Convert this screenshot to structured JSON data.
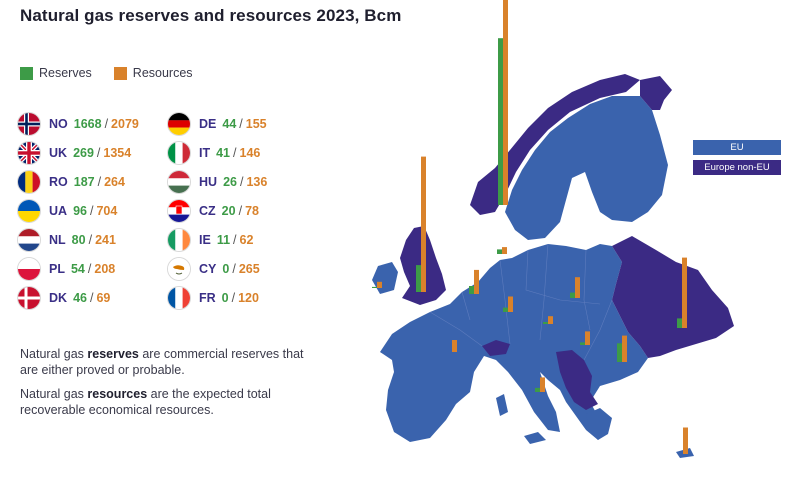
{
  "title": "Natural gas reserves and resources 2023, Bcm",
  "legend": {
    "reserves": "Reserves",
    "resources": "Resources"
  },
  "colors": {
    "reserves": "#3d9b47",
    "resources": "#d9822b",
    "eu": "#3a63ad",
    "non_eu": "#3b2a84"
  },
  "map_legend": {
    "eu": "EU",
    "non_eu": "Europe non-EU"
  },
  "countries": [
    {
      "code": "NO",
      "reserves": "1668",
      "resources": "2079",
      "flag": "norway-flag"
    },
    {
      "code": "UK",
      "reserves": "269",
      "resources": "1354",
      "flag": "uk-flag"
    },
    {
      "code": "RO",
      "reserves": "187",
      "resources": "264",
      "flag": "romania-flag"
    },
    {
      "code": "UA",
      "reserves": "96",
      "resources": "704",
      "flag": "ukraine-flag"
    },
    {
      "code": "NL",
      "reserves": "80",
      "resources": "241",
      "flag": "netherlands-flag"
    },
    {
      "code": "PL",
      "reserves": "54",
      "resources": "208",
      "flag": "poland-flag"
    },
    {
      "code": "DK",
      "reserves": "46",
      "resources": "69",
      "flag": "denmark-flag"
    },
    {
      "code": "DE",
      "reserves": "44",
      "resources": "155",
      "flag": "germany-flag"
    },
    {
      "code": "IT",
      "reserves": "41",
      "resources": "146",
      "flag": "italy-flag"
    },
    {
      "code": "HU",
      "reserves": "26",
      "resources": "136",
      "flag": "hungary-flag"
    },
    {
      "code": "CZ",
      "reserves": "20",
      "resources": "78",
      "flag": "czechia-flag"
    },
    {
      "code": "IE",
      "reserves": "11",
      "resources": "62",
      "flag": "ireland-flag"
    },
    {
      "code": "CY",
      "reserves": "0",
      "resources": "265",
      "flag": "cyprus-flag"
    },
    {
      "code": "FR",
      "reserves": "0",
      "resources": "120",
      "flag": "france-flag"
    }
  ],
  "notes": [
    {
      "pre": "Natural gas ",
      "bold": "reserves",
      "post": " are commercial reserves that are either proved or probable."
    },
    {
      "pre": "Natural gas ",
      "bold": "resources",
      "post": " are the expected total recoverable economical resources."
    }
  ]
}
